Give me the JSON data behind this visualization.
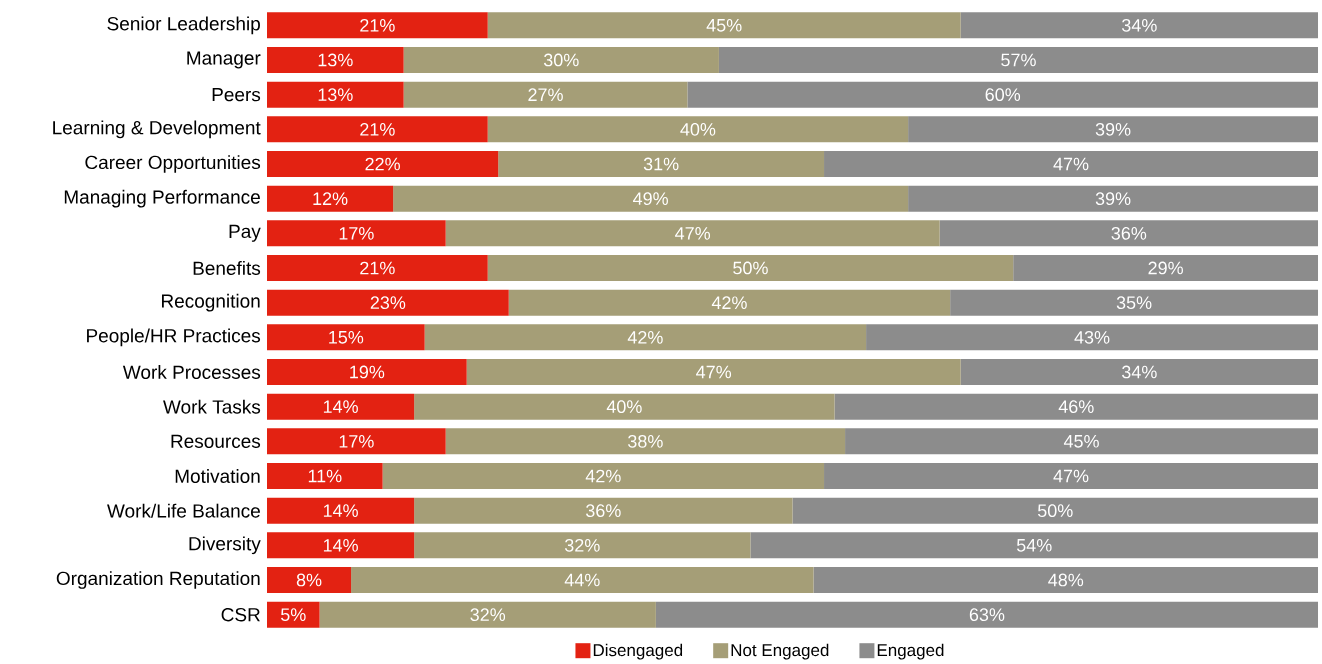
{
  "chart_data": {
    "type": "bar",
    "orientation": "horizontal",
    "stacked": true,
    "legend": "bottom",
    "tick_labels": "y",
    "xlim": [
      0,
      100
    ],
    "categories": [
      "Senior Leadership",
      "Manager",
      "Peers",
      "Learning & Development",
      "Career Opportunities",
      "Managing Performance",
      "Pay",
      "Benefits",
      "Recognition",
      "People/HR Practices",
      "Work Processes",
      "Work Tasks",
      "Resources",
      "Motivation",
      "Work/Life Balance",
      "Diversity",
      "Organization Reputation",
      "CSR"
    ],
    "series": [
      {
        "name": "Disengaged",
        "color": "#e32212",
        "values": [
          21,
          13,
          13,
          21,
          22,
          12,
          17,
          21,
          23,
          15,
          19,
          14,
          17,
          11,
          14,
          14,
          8,
          5
        ],
        "value_labels": [
          "21%",
          "13%",
          "13%",
          "21%",
          "22%",
          "12%",
          "17%",
          "21%",
          "23%",
          "15%",
          "19%",
          "14%",
          "17%",
          "11%",
          "14%",
          "14%",
          "8%",
          "5%"
        ]
      },
      {
        "name": "Not Engaged",
        "color": "#a59e77",
        "values": [
          45,
          30,
          27,
          40,
          31,
          49,
          47,
          50,
          42,
          42,
          47,
          40,
          38,
          42,
          36,
          32,
          44,
          32
        ],
        "value_labels": [
          "45%",
          "30%",
          "27%",
          "40%",
          "31%",
          "49%",
          "47%",
          "50%",
          "42%",
          "42%",
          "47%",
          "40%",
          "38%",
          "42%",
          "36%",
          "32%",
          "44%",
          "32%"
        ]
      },
      {
        "name": "Engaged",
        "color": "#8c8c8c",
        "values": [
          34,
          57,
          60,
          39,
          47,
          39,
          36,
          29,
          35,
          43,
          34,
          46,
          45,
          47,
          50,
          54,
          48,
          63
        ],
        "value_labels": [
          "34%",
          "57%",
          "60%",
          "39%",
          "47%",
          "39%",
          "36%",
          "29%",
          "35%",
          "43%",
          "34%",
          "46%",
          "45%",
          "47%",
          "50%",
          "54%",
          "48%",
          "63%"
        ]
      }
    ]
  }
}
